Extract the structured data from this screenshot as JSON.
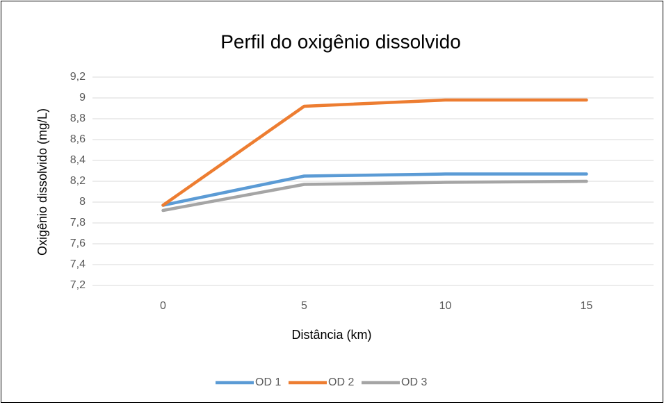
{
  "chart_data": {
    "type": "line",
    "title": "Perfil do oxigênio dissolvido",
    "x_label": "Distância (km)",
    "y_label": "Oxigênio dissolvido (mg/L)",
    "categories": [
      "0",
      "5",
      "10",
      "15"
    ],
    "series": [
      {
        "name": "OD 1",
        "color": "#5b9bd5",
        "values": [
          7.97,
          8.25,
          8.27,
          8.27
        ]
      },
      {
        "name": "OD 2",
        "color": "#ed7d31",
        "values": [
          7.97,
          8.92,
          8.98,
          8.98
        ]
      },
      {
        "name": "OD 3",
        "color": "#a5a5a5",
        "values": [
          7.92,
          8.17,
          8.19,
          8.2
        ]
      }
    ],
    "ylim": [
      7.2,
      9.2
    ],
    "yticks": [
      {
        "value": 7.2,
        "label": "7,2"
      },
      {
        "value": 7.4,
        "label": "7,4"
      },
      {
        "value": 7.6,
        "label": "7,6"
      },
      {
        "value": 7.8,
        "label": "7,8"
      },
      8,
      {
        "value": 8.2,
        "label": "8,2"
      },
      {
        "value": 8.4,
        "label": "8,4"
      },
      {
        "value": 8.6,
        "label": "8,6"
      },
      {
        "value": 8.8,
        "label": "8,8"
      },
      9,
      {
        "value": 9.2,
        "label": "9,2"
      }
    ],
    "grid": true,
    "legend": "bottom"
  }
}
